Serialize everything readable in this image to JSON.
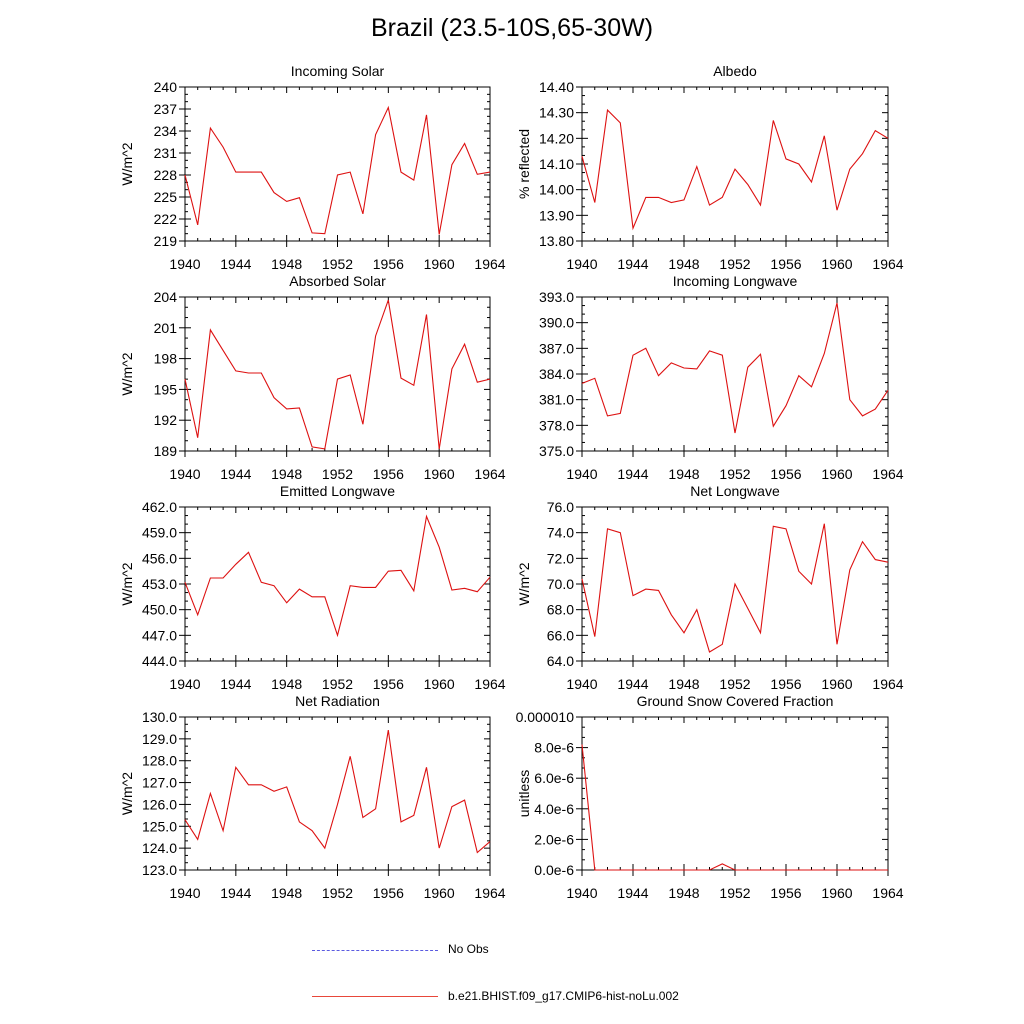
{
  "title": "Brazil (23.5-10S,65-30W)",
  "legend": {
    "items": [
      {
        "label": "No Obs",
        "color": "#5a5ae0",
        "dash": "dashed"
      },
      {
        "label": "b.e21.BHIST.f09_g17.CMIP6-hist-noLu.002",
        "color": "#e8473a",
        "dash": "solid"
      }
    ]
  },
  "colors": {
    "series": "#dd1111"
  },
  "chart_data": [
    {
      "type": "line",
      "title": "Incoming Solar",
      "ylabel": "W/m^2",
      "xlim": [
        1940,
        1964
      ],
      "ylim": [
        219,
        240
      ],
      "xticks": [
        1940,
        1944,
        1948,
        1952,
        1956,
        1960,
        1964
      ],
      "yticks": [
        219,
        222,
        225,
        228,
        231,
        234,
        237,
        240
      ],
      "ytick_labels": [
        "219",
        "222",
        "225",
        "228",
        "231",
        "234",
        "237",
        "240"
      ],
      "x": [
        1940,
        1941,
        1942,
        1943,
        1944,
        1945,
        1946,
        1947,
        1948,
        1949,
        1950,
        1951,
        1952,
        1953,
        1954,
        1955,
        1956,
        1957,
        1958,
        1959,
        1960,
        1961,
        1962,
        1963,
        1964
      ],
      "series": [
        {
          "values": [
            228.0,
            221.2,
            234.4,
            231.8,
            228.4,
            228.4,
            228.4,
            225.6,
            224.4,
            224.9,
            220.1,
            220.0,
            228.0,
            228.4,
            222.7,
            233.5,
            237.2,
            228.4,
            227.3,
            236.2,
            219.9,
            229.4,
            232.3,
            228.1,
            228.4
          ]
        }
      ]
    },
    {
      "type": "line",
      "title": "Albedo",
      "ylabel": "% reflected",
      "xlim": [
        1940,
        1964
      ],
      "ylim": [
        13.8,
        14.4
      ],
      "xticks": [
        1940,
        1944,
        1948,
        1952,
        1956,
        1960,
        1964
      ],
      "yticks": [
        13.8,
        13.9,
        14.0,
        14.1,
        14.2,
        14.3,
        14.4
      ],
      "ytick_labels": [
        "13.80",
        "13.90",
        "14.00",
        "14.10",
        "14.20",
        "14.30",
        "14.40"
      ],
      "x": [
        1940,
        1941,
        1942,
        1943,
        1944,
        1945,
        1946,
        1947,
        1948,
        1949,
        1950,
        1951,
        1952,
        1953,
        1954,
        1955,
        1956,
        1957,
        1958,
        1959,
        1960,
        1961,
        1962,
        1963,
        1964
      ],
      "series": [
        {
          "values": [
            14.13,
            13.95,
            14.31,
            14.26,
            13.85,
            13.97,
            13.97,
            13.95,
            13.96,
            14.09,
            13.94,
            13.97,
            14.08,
            14.02,
            13.94,
            14.27,
            14.12,
            14.1,
            14.03,
            14.21,
            13.92,
            14.08,
            14.14,
            14.23,
            14.2
          ]
        }
      ]
    },
    {
      "type": "line",
      "title": "Absorbed Solar",
      "ylabel": "W/m^2",
      "xlim": [
        1940,
        1964
      ],
      "ylim": [
        189,
        204
      ],
      "xticks": [
        1940,
        1944,
        1948,
        1952,
        1956,
        1960,
        1964
      ],
      "yticks": [
        189,
        192,
        195,
        198,
        201,
        204
      ],
      "ytick_labels": [
        "189",
        "192",
        "195",
        "198",
        "201",
        "204"
      ],
      "x": [
        1940,
        1941,
        1942,
        1943,
        1944,
        1945,
        1946,
        1947,
        1948,
        1949,
        1950,
        1951,
        1952,
        1953,
        1954,
        1955,
        1956,
        1957,
        1958,
        1959,
        1960,
        1961,
        1962,
        1963,
        1964
      ],
      "series": [
        {
          "values": [
            196.0,
            190.3,
            200.8,
            198.8,
            196.8,
            196.6,
            196.6,
            194.2,
            193.1,
            193.2,
            189.4,
            189.2,
            196.0,
            196.4,
            191.6,
            200.2,
            203.7,
            196.1,
            195.4,
            202.3,
            189.2,
            197.0,
            199.4,
            195.7,
            196.0
          ]
        }
      ]
    },
    {
      "type": "line",
      "title": "Incoming Longwave",
      "ylabel": "",
      "xlim": [
        1940,
        1964
      ],
      "ylim": [
        375,
        393
      ],
      "xticks": [
        1940,
        1944,
        1948,
        1952,
        1956,
        1960,
        1964
      ],
      "yticks": [
        375,
        378,
        381,
        384,
        387,
        390,
        393
      ],
      "ytick_labels": [
        "375.0",
        "378.0",
        "381.0",
        "384.0",
        "387.0",
        "390.0",
        "393.0"
      ],
      "x": [
        1940,
        1941,
        1942,
        1943,
        1944,
        1945,
        1946,
        1947,
        1948,
        1949,
        1950,
        1951,
        1952,
        1953,
        1954,
        1955,
        1956,
        1957,
        1958,
        1959,
        1960,
        1961,
        1962,
        1963,
        1964
      ],
      "series": [
        {
          "values": [
            382.9,
            383.5,
            379.1,
            379.4,
            386.2,
            387.0,
            383.8,
            385.3,
            384.7,
            384.6,
            386.7,
            386.2,
            377.1,
            384.8,
            386.3,
            377.9,
            380.3,
            383.8,
            382.5,
            386.4,
            392.3,
            381.0,
            379.1,
            379.9,
            382.1
          ]
        }
      ]
    },
    {
      "type": "line",
      "title": "Emitted Longwave",
      "ylabel": "W/m^2",
      "xlim": [
        1940,
        1964
      ],
      "ylim": [
        444,
        462
      ],
      "xticks": [
        1940,
        1944,
        1948,
        1952,
        1956,
        1960,
        1964
      ],
      "yticks": [
        444,
        447,
        450,
        453,
        456,
        459,
        462
      ],
      "ytick_labels": [
        "444.0",
        "447.0",
        "450.0",
        "453.0",
        "456.0",
        "459.0",
        "462.0"
      ],
      "x": [
        1940,
        1941,
        1942,
        1943,
        1944,
        1945,
        1946,
        1947,
        1948,
        1949,
        1950,
        1951,
        1952,
        1953,
        1954,
        1955,
        1956,
        1957,
        1958,
        1959,
        1960,
        1961,
        1962,
        1963,
        1964
      ],
      "series": [
        {
          "values": [
            453.2,
            449.4,
            453.7,
            453.7,
            455.3,
            456.7,
            453.2,
            452.8,
            450.8,
            452.4,
            451.5,
            451.5,
            447.0,
            452.8,
            452.6,
            452.6,
            454.5,
            454.6,
            452.2,
            460.9,
            457.3,
            452.3,
            452.5,
            452.1,
            453.8
          ]
        }
      ]
    },
    {
      "type": "line",
      "title": "Net Longwave",
      "ylabel": "W/m^2",
      "xlim": [
        1940,
        1964
      ],
      "ylim": [
        64,
        76
      ],
      "xticks": [
        1940,
        1944,
        1948,
        1952,
        1956,
        1960,
        1964
      ],
      "yticks": [
        64,
        66,
        68,
        70,
        72,
        74,
        76
      ],
      "ytick_labels": [
        "64.0",
        "66.0",
        "68.0",
        "70.0",
        "72.0",
        "74.0",
        "76.0"
      ],
      "x": [
        1940,
        1941,
        1942,
        1943,
        1944,
        1945,
        1946,
        1947,
        1948,
        1949,
        1950,
        1951,
        1952,
        1953,
        1954,
        1955,
        1956,
        1957,
        1958,
        1959,
        1960,
        1961,
        1962,
        1963,
        1964
      ],
      "series": [
        {
          "values": [
            70.4,
            65.9,
            74.3,
            74.0,
            69.1,
            69.6,
            69.5,
            67.6,
            66.2,
            68.0,
            64.7,
            65.3,
            70.0,
            68.1,
            66.2,
            74.5,
            74.3,
            71.0,
            70.0,
            74.7,
            65.3,
            71.1,
            73.3,
            71.9,
            71.7
          ]
        }
      ]
    },
    {
      "type": "line",
      "title": "Net Radiation",
      "ylabel": "W/m^2",
      "xlim": [
        1940,
        1964
      ],
      "ylim": [
        123,
        130
      ],
      "xticks": [
        1940,
        1944,
        1948,
        1952,
        1956,
        1960,
        1964
      ],
      "yticks": [
        123,
        124,
        125,
        126,
        127,
        128,
        129,
        130
      ],
      "ytick_labels": [
        "123.0",
        "124.0",
        "125.0",
        "126.0",
        "127.0",
        "128.0",
        "129.0",
        "130.0"
      ],
      "x": [
        1940,
        1941,
        1942,
        1943,
        1944,
        1945,
        1946,
        1947,
        1948,
        1949,
        1950,
        1951,
        1952,
        1953,
        1954,
        1955,
        1956,
        1957,
        1958,
        1959,
        1960,
        1961,
        1962,
        1963,
        1964
      ],
      "series": [
        {
          "values": [
            125.3,
            124.4,
            126.5,
            124.8,
            127.7,
            126.9,
            126.9,
            126.6,
            126.8,
            125.2,
            124.8,
            124.0,
            126.0,
            128.2,
            125.4,
            125.8,
            129.4,
            125.2,
            125.5,
            127.7,
            124.0,
            125.9,
            126.2,
            123.8,
            124.3
          ]
        }
      ]
    },
    {
      "type": "line",
      "title": "Ground Snow Covered Fraction",
      "ylabel": "unitless",
      "xlim": [
        1940,
        1964
      ],
      "ylim": [
        0,
        1e-05
      ],
      "xticks": [
        1940,
        1944,
        1948,
        1952,
        1956,
        1960,
        1964
      ],
      "yticks": [
        0,
        2e-06,
        4e-06,
        6e-06,
        8e-06,
        1e-05
      ],
      "ytick_labels": [
        "0.0e-6",
        "2.0e-6",
        "4.0e-6",
        "6.0e-6",
        "8.0e-6",
        "0.000010"
      ],
      "x": [
        1940,
        1941,
        1942,
        1943,
        1944,
        1945,
        1946,
        1947,
        1948,
        1949,
        1950,
        1951,
        1952,
        1953,
        1954,
        1955,
        1956,
        1957,
        1958,
        1959,
        1960,
        1961,
        1962,
        1963,
        1964
      ],
      "series": [
        {
          "values": [
            8.2e-06,
            0,
            0,
            0,
            0,
            0,
            0,
            0,
            0,
            0,
            0,
            4e-07,
            0,
            0,
            0,
            0,
            0,
            0,
            0,
            0,
            0,
            0,
            0,
            0,
            0
          ]
        }
      ]
    }
  ]
}
